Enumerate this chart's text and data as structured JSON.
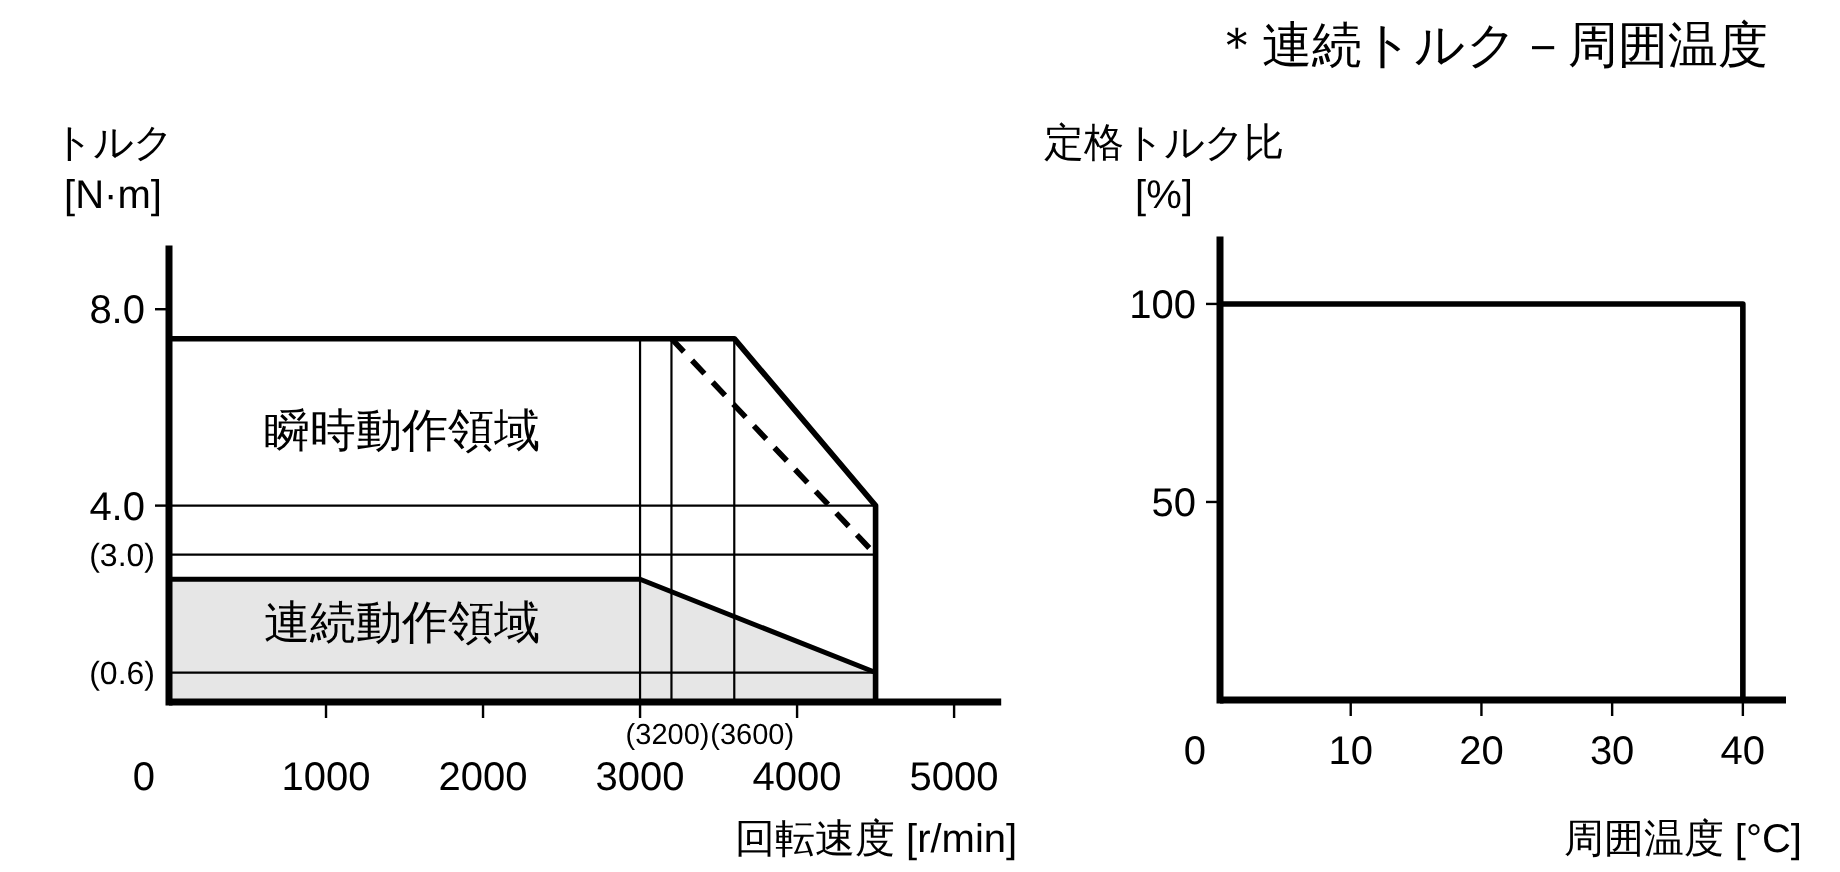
{
  "chart_data": [
    {
      "type": "line",
      "xlabel": "回転速度 [r/min]",
      "ylabel": "トルク\n[N·m]",
      "xlim": [
        0,
        5300
      ],
      "ylim": [
        0,
        9.3
      ],
      "xticks": [
        0,
        1000,
        2000,
        3000,
        4000,
        5000
      ],
      "yticks": [
        {
          "value": 8,
          "label": "8.0"
        },
        {
          "value": 4,
          "label": "4.0"
        }
      ],
      "series": [
        {
          "color": "#000000",
          "x": [
            0,
            3600,
            4500,
            4500
          ],
          "values": [
            7.4,
            7.4,
            4.0,
            0
          ]
        },
        {
          "color": "#000000",
          "line_style": "dashed",
          "x": [
            3200,
            4500
          ],
          "values": [
            7.4,
            3.0
          ]
        },
        {
          "type": "area",
          "color": "#e6e6e6",
          "x": [
            0,
            3000,
            4500
          ],
          "values": [
            2.5,
            2.5,
            0.6
          ]
        }
      ],
      "ref_lines": [
        {
          "axis": "x",
          "value": 3000,
          "color": "#000000"
        },
        {
          "axis": "x",
          "value": 3200,
          "label": "(3200)",
          "color": "#000000"
        },
        {
          "axis": "x",
          "value": 3600,
          "label": "(3600)",
          "color": "#000000"
        },
        {
          "axis": "y",
          "value": 4,
          "color": "#000000"
        },
        {
          "axis": "y",
          "value": 3,
          "label": "(3.0)",
          "color": "#000000"
        },
        {
          "axis": "y",
          "value": 0.6,
          "label": "(0.6)",
          "color": "#000000"
        }
      ],
      "annotations": [
        "瞬時動作領域",
        "連続動作領域"
      ]
    },
    {
      "type": "line",
      "title": "＊連続トルク－周囲温度",
      "xlabel": "周囲温度 [°C]",
      "ylabel": "定格トルク比\n[%]",
      "xlim": [
        0,
        43.3
      ],
      "ylim": [
        0,
        117
      ],
      "xticks": [
        0,
        10,
        20,
        30,
        40
      ],
      "yticks": [
        50,
        100
      ],
      "series": [
        {
          "color": "#000000",
          "x": [
            0,
            40,
            40
          ],
          "values": [
            100,
            100,
            0
          ]
        }
      ]
    }
  ]
}
